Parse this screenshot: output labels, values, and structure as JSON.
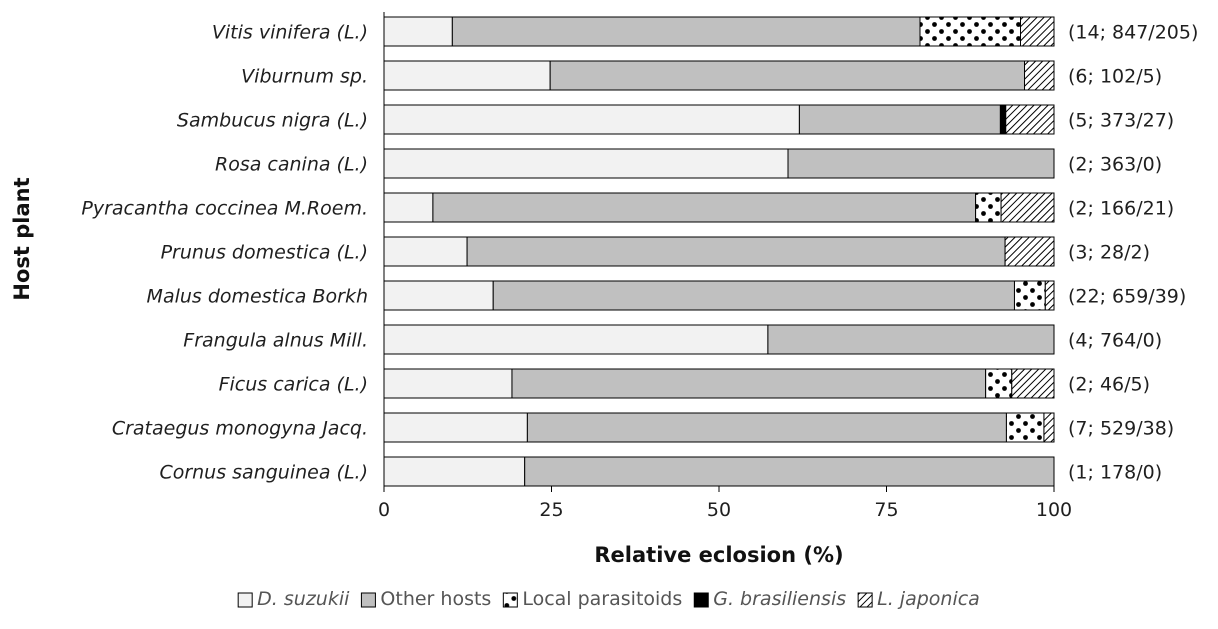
{
  "chart_data": {
    "type": "bar",
    "orientation": "horizontal",
    "stacked": true,
    "xlabel": "Relative eclosion (%)",
    "ylabel": "Host plant",
    "xlim": [
      0,
      100
    ],
    "xticks": [
      "0",
      "25",
      "50",
      "75",
      "100"
    ],
    "grid": false,
    "legend_position": "bottom",
    "categories": [
      "Vitis vinifera (L.)",
      "Viburnum sp.",
      "Sambucus nigra (L.)",
      "Rosa canina (L.)",
      "Pyracantha coccinea M.Roem.",
      "Prunus domestica (L.)",
      "Malus domestica Borkh",
      "Frangula alnus Mill.",
      "Ficus carica (L.)",
      "Crataegus monogyna Jacq.",
      "Cornus sanguinea (L.)"
    ],
    "annotations": [
      "(14; 847/205)",
      "(6; 102/5)",
      "(5; 373/27)",
      "(2; 363/0)",
      "(2; 166/21)",
      "(3; 28/2)",
      "(22; 659/39)",
      "(4; 764/0)",
      "(2; 46/5)",
      "(7; 529/38)",
      "(1; 178/0)"
    ],
    "series": [
      {
        "name": "D. suzukii",
        "italic": true,
        "pattern": "solid-light",
        "color": "#f2f2f2",
        "values": [
          10.2,
          24.8,
          62.0,
          60.3,
          7.3,
          12.4,
          16.3,
          57.3,
          19.1,
          21.4,
          21.0
        ]
      },
      {
        "name": "Other hosts",
        "italic": false,
        "pattern": "solid-grey",
        "color": "#c0c0c0",
        "values": [
          69.8,
          70.8,
          30.0,
          39.7,
          81.0,
          80.3,
          77.8,
          42.7,
          70.7,
          71.5,
          79.0
        ]
      },
      {
        "name": "Local parasitoids",
        "italic": false,
        "pattern": "dots",
        "color": "#ffffff",
        "values": [
          15.0,
          0,
          0,
          0,
          3.8,
          0,
          4.6,
          0,
          3.9,
          5.6,
          0
        ]
      },
      {
        "name": "G. brasiliensis",
        "italic": true,
        "pattern": "solid-black",
        "color": "#000000",
        "values": [
          0,
          0,
          0.8,
          0,
          0,
          0,
          0,
          0,
          0,
          0,
          0
        ]
      },
      {
        "name": "L. japonica",
        "italic": true,
        "pattern": "hatch",
        "color": "#ffffff",
        "values": [
          5.0,
          4.4,
          7.2,
          0,
          7.9,
          7.3,
          1.3,
          0,
          6.3,
          1.5,
          0
        ]
      }
    ]
  }
}
